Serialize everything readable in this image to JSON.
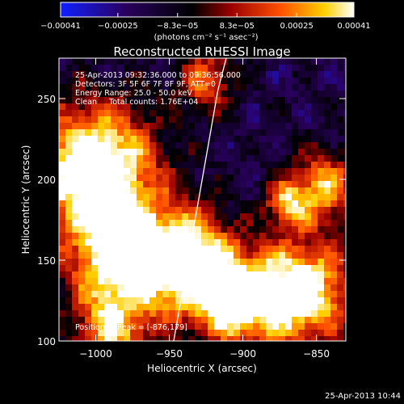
{
  "chart_data": {
    "type": "heatmap",
    "title": "Reconstructed RHESSI Image",
    "xlabel": "Heliocentric X (arcsec)",
    "ylabel": "Heliocentric Y (arcsec)",
    "xlim": [
      -1025,
      -830
    ],
    "ylim": [
      100,
      275
    ],
    "xticks": [
      -1000,
      -950,
      -900,
      -850
    ],
    "xtick_labels": [
      "−1000",
      "−950",
      "−900",
      "−850"
    ],
    "yticks": [
      100,
      150,
      200,
      250
    ],
    "ytick_labels": [
      "100",
      "150",
      "200",
      "250"
    ],
    "colorbar": {
      "min": -0.00041,
      "max": 0.00041,
      "ticks": [
        -0.00041,
        -0.00025,
        -8.3e-05,
        8.3e-05,
        0.00025,
        0.00041
      ],
      "tick_labels": [
        "−0.00041",
        "−0.00025",
        "−8.3e−05",
        "8.3e−05",
        "0.00025",
        "0.00041"
      ],
      "unit_line": "(photons cm⁻² s⁻¹ asec⁻²)",
      "colors": [
        "#1020ff",
        "#2a0060",
        "#000000",
        "#9a0000",
        "#ff5000",
        "#ffd000",
        "#ffffff"
      ]
    },
    "annotations": [
      "25-Apr-2013 09:32:36.000 to 09:36:56.000",
      "Detectors: 3F 5F 6F 7F 8F 9F, ATT=0",
      "Energy Range: 25.0 - 50.0 keV",
      "Clean     Total counts: 1.76E+04"
    ],
    "peak_label": "Position of Peak = [-876,179]",
    "limb_curve": {
      "x": [
        -947,
        -941,
        -935,
        -929,
        -923,
        -917,
        -911
      ],
      "y": [
        100,
        131,
        162,
        193,
        224,
        255,
        276
      ]
    },
    "series": [
      {
        "name": "",
        "mean_bands": [
          {
            "x": -1000,
            "y": 200,
            "level": "high"
          },
          {
            "x": -880,
            "y": 240,
            "level": "low"
          },
          {
            "x": -940,
            "y": 150,
            "level": "high"
          },
          {
            "x": -860,
            "y": 130,
            "level": "high"
          }
        ]
      }
    ]
  },
  "footer": {
    "timestamp": "25-Apr-2013 10:44"
  }
}
